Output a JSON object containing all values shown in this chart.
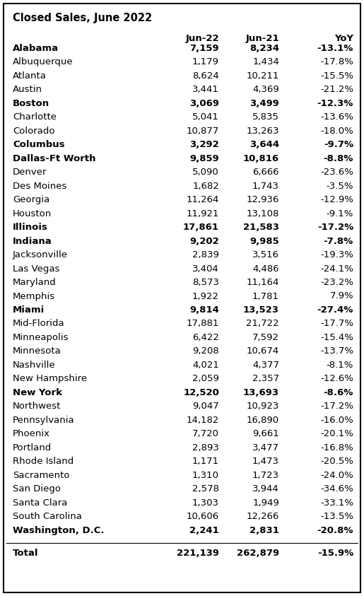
{
  "title": "Closed Sales, June 2022",
  "rows": [
    {
      "name": "Alabama",
      "jun22": "7,159",
      "jun21": "8,234",
      "yoy": "-13.1%",
      "bold": true
    },
    {
      "name": "Albuquerque",
      "jun22": "1,179",
      "jun21": "1,434",
      "yoy": "-17.8%",
      "bold": false
    },
    {
      "name": "Atlanta",
      "jun22": "8,624",
      "jun21": "10,211",
      "yoy": "-15.5%",
      "bold": false
    },
    {
      "name": "Austin",
      "jun22": "3,441",
      "jun21": "4,369",
      "yoy": "-21.2%",
      "bold": false
    },
    {
      "name": "Boston",
      "jun22": "3,069",
      "jun21": "3,499",
      "yoy": "-12.3%",
      "bold": true
    },
    {
      "name": "Charlotte",
      "jun22": "5,041",
      "jun21": "5,835",
      "yoy": "-13.6%",
      "bold": false
    },
    {
      "name": "Colorado",
      "jun22": "10,877",
      "jun21": "13,263",
      "yoy": "-18.0%",
      "bold": false
    },
    {
      "name": "Columbus",
      "jun22": "3,292",
      "jun21": "3,644",
      "yoy": "-9.7%",
      "bold": true
    },
    {
      "name": "Dallas-Ft Worth",
      "jun22": "9,859",
      "jun21": "10,816",
      "yoy": "-8.8%",
      "bold": true
    },
    {
      "name": "Denver",
      "jun22": "5,090",
      "jun21": "6,666",
      "yoy": "-23.6%",
      "bold": false
    },
    {
      "name": "Des Moines",
      "jun22": "1,682",
      "jun21": "1,743",
      "yoy": "-3.5%",
      "bold": false
    },
    {
      "name": "Georgia",
      "jun22": "11,264",
      "jun21": "12,936",
      "yoy": "-12.9%",
      "bold": false
    },
    {
      "name": "Houston",
      "jun22": "11,921",
      "jun21": "13,108",
      "yoy": "-9.1%",
      "bold": false
    },
    {
      "name": "Illinois",
      "jun22": "17,861",
      "jun21": "21,583",
      "yoy": "-17.2%",
      "bold": true
    },
    {
      "name": "Indiana",
      "jun22": "9,202",
      "jun21": "9,985",
      "yoy": "-7.8%",
      "bold": true
    },
    {
      "name": "Jacksonville",
      "jun22": "2,839",
      "jun21": "3,516",
      "yoy": "-19.3%",
      "bold": false
    },
    {
      "name": "Las Vegas",
      "jun22": "3,404",
      "jun21": "4,486",
      "yoy": "-24.1%",
      "bold": false
    },
    {
      "name": "Maryland",
      "jun22": "8,573",
      "jun21": "11,164",
      "yoy": "-23.2%",
      "bold": false
    },
    {
      "name": "Memphis",
      "jun22": "1,922",
      "jun21": "1,781",
      "yoy": "7.9%",
      "bold": false
    },
    {
      "name": "Miami",
      "jun22": "9,814",
      "jun21": "13,523",
      "yoy": "-27.4%",
      "bold": true
    },
    {
      "name": "Mid-Florida",
      "jun22": "17,881",
      "jun21": "21,722",
      "yoy": "-17.7%",
      "bold": false
    },
    {
      "name": "Minneapolis",
      "jun22": "6,422",
      "jun21": "7,592",
      "yoy": "-15.4%",
      "bold": false
    },
    {
      "name": "Minnesota",
      "jun22": "9,208",
      "jun21": "10,674",
      "yoy": "-13.7%",
      "bold": false
    },
    {
      "name": "Nashville",
      "jun22": "4,021",
      "jun21": "4,377",
      "yoy": "-8.1%",
      "bold": false
    },
    {
      "name": "New Hampshire",
      "jun22": "2,059",
      "jun21": "2,357",
      "yoy": "-12.6%",
      "bold": false
    },
    {
      "name": "New York",
      "jun22": "12,520",
      "jun21": "13,693",
      "yoy": "-8.6%",
      "bold": true
    },
    {
      "name": "Northwest",
      "jun22": "9,047",
      "jun21": "10,923",
      "yoy": "-17.2%",
      "bold": false
    },
    {
      "name": "Pennsylvania",
      "jun22": "14,182",
      "jun21": "16,890",
      "yoy": "-16.0%",
      "bold": false
    },
    {
      "name": "Phoenix",
      "jun22": "7,720",
      "jun21": "9,661",
      "yoy": "-20.1%",
      "bold": false
    },
    {
      "name": "Portland",
      "jun22": "2,893",
      "jun21": "3,477",
      "yoy": "-16.8%",
      "bold": false
    },
    {
      "name": "Rhode Island",
      "jun22": "1,171",
      "jun21": "1,473",
      "yoy": "-20.5%",
      "bold": false
    },
    {
      "name": "Sacramento",
      "jun22": "1,310",
      "jun21": "1,723",
      "yoy": "-24.0%",
      "bold": false
    },
    {
      "name": "San Diego",
      "jun22": "2,578",
      "jun21": "3,944",
      "yoy": "-34.6%",
      "bold": false
    },
    {
      "name": "Santa Clara",
      "jun22": "1,303",
      "jun21": "1,949",
      "yoy": "-33.1%",
      "bold": false
    },
    {
      "name": "South Carolina",
      "jun22": "10,606",
      "jun21": "12,266",
      "yoy": "-13.5%",
      "bold": false
    },
    {
      "name": "Washington, D.C.",
      "jun22": "2,241",
      "jun21": "2,831",
      "yoy": "-20.8%",
      "bold": true
    }
  ],
  "total": {
    "name": "Total",
    "jun22": "221,139",
    "jun21": "262,879",
    "yoy": "-15.9%"
  },
  "bg_color": "#ffffff",
  "text_color": "#000000",
  "title_fontsize": 10.5,
  "header_fontsize": 9.5,
  "row_fontsize": 9.5,
  "fig_width": 5.15,
  "fig_height": 8.43,
  "dpi": 100
}
